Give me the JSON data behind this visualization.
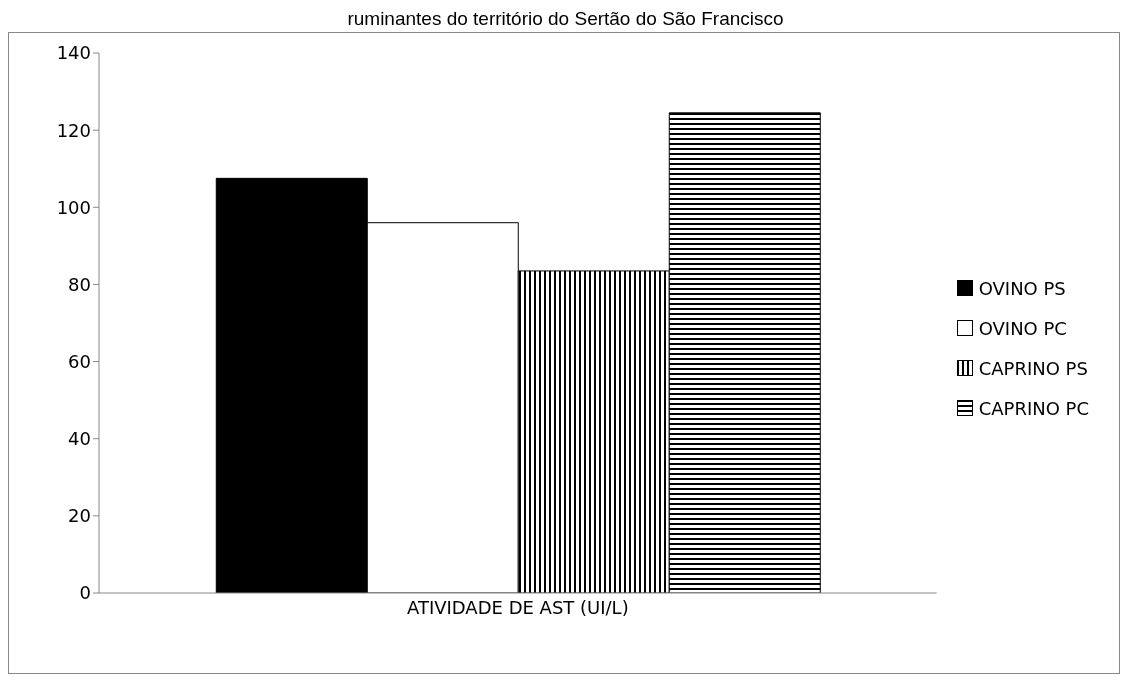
{
  "chart_data": {
    "type": "bar",
    "title": "ruminantes do território do Sertão do São Francisco",
    "categories": [
      "ATIVIDADE DE AST (UI/L)"
    ],
    "series": [
      {
        "name": "OVINO PS",
        "color": "#000000",
        "values": [
          107.5
        ]
      },
      {
        "name": "OVINO PC",
        "color": "#ffffff",
        "values": [
          96
        ]
      },
      {
        "name": "CAPRINO PS",
        "color": "#000000",
        "values": [
          83.5
        ]
      },
      {
        "name": "CAPRINO PC",
        "color": "#000000",
        "values": [
          124.5
        ]
      }
    ],
    "ylim": [
      0,
      140
    ],
    "yticks": [
      0,
      20,
      40,
      60,
      80,
      100,
      120,
      140
    ],
    "grid": false,
    "legend": "right"
  }
}
